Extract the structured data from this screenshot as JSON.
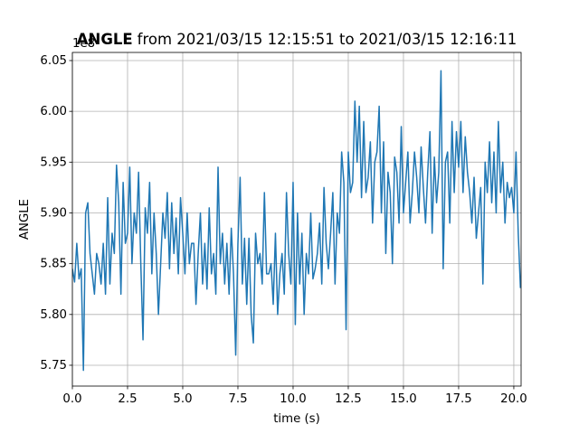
{
  "chart_data": {
    "type": "line",
    "title_bold": "ANGLE",
    "title_rest": "from 2021/03/15 12:15:51 to 2021/03/15 12:16:11",
    "y_offset_label": "1e8",
    "xlabel": "time (s)",
    "ylabel": "ANGLE",
    "color": "#1f77b4",
    "grid": true,
    "xlim": [
      0,
      20.33
    ],
    "ylim": [
      5.7295,
      6.058
    ],
    "xticks": [
      {
        "value": 0,
        "label": "0.0"
      },
      2.5,
      {
        "value": 5,
        "label": "5.0"
      },
      7.5,
      {
        "value": 10,
        "label": "10.0"
      },
      12.5,
      {
        "value": 15,
        "label": "15.0"
      },
      17.5,
      {
        "value": 20,
        "label": "20.0"
      }
    ],
    "yticks": [
      5.75,
      {
        "value": 5.8,
        "label": "5.80"
      },
      5.85,
      {
        "value": 5.9,
        "label": "5.90"
      },
      5.95,
      {
        "value": 6,
        "label": "6.00"
      },
      6.05
    ],
    "x": [
      0,
      0.1,
      0.2,
      0.3,
      0.4,
      0.5,
      0.6,
      0.7,
      0.8,
      0.9,
      1,
      1.1,
      1.2,
      1.3,
      1.4,
      1.5,
      1.6,
      1.7,
      1.8,
      1.9,
      2,
      2.1,
      2.2,
      2.3,
      2.4,
      2.5,
      2.6,
      2.7,
      2.8,
      2.9,
      3,
      3.1,
      3.2,
      3.3,
      3.4,
      3.5,
      3.6,
      3.7,
      3.8,
      3.9,
      4,
      4.1,
      4.2,
      4.3,
      4.4,
      4.5,
      4.6,
      4.7,
      4.8,
      4.9,
      5,
      5.1,
      5.2,
      5.3,
      5.4,
      5.5,
      5.6,
      5.7,
      5.8,
      5.9,
      6,
      6.1,
      6.2,
      6.3,
      6.4,
      6.5,
      6.6,
      6.7,
      6.8,
      6.9,
      7,
      7.1,
      7.2,
      7.3,
      7.4,
      7.5,
      7.6,
      7.7,
      7.8,
      7.9,
      8,
      8.1,
      8.2,
      8.3,
      8.4,
      8.5,
      8.6,
      8.7,
      8.8,
      8.9,
      9,
      9.1,
      9.2,
      9.3,
      9.4,
      9.5,
      9.6,
      9.7,
      9.8,
      9.9,
      10,
      10.1,
      10.2,
      10.3,
      10.4,
      10.5,
      10.6,
      10.7,
      10.8,
      10.9,
      11,
      11.1,
      11.2,
      11.3,
      11.4,
      11.5,
      11.6,
      11.7,
      11.8,
      11.9,
      12,
      12.1,
      12.2,
      12.3,
      12.4,
      12.5,
      12.6,
      12.7,
      12.8,
      12.9,
      13,
      13.1,
      13.2,
      13.3,
      13.4,
      13.5,
      13.6,
      13.7,
      13.8,
      13.9,
      14,
      14.1,
      14.2,
      14.3,
      14.4,
      14.5,
      14.6,
      14.7,
      14.8,
      14.9,
      15,
      15.1,
      15.2,
      15.3,
      15.4,
      15.5,
      15.6,
      15.7,
      15.8,
      15.9,
      16,
      16.1,
      16.2,
      16.3,
      16.4,
      16.5,
      16.6,
      16.7,
      16.8,
      16.9,
      17,
      17.1,
      17.2,
      17.3,
      17.4,
      17.5,
      17.6,
      17.7,
      17.8,
      17.9,
      18,
      18.1,
      18.2,
      18.3,
      18.4,
      18.5,
      18.6,
      18.7,
      18.8,
      18.9,
      19,
      19.1,
      19.2,
      19.3,
      19.4,
      19.5,
      19.6,
      19.7,
      19.8,
      19.9,
      20,
      20.1,
      20.2,
      20.3
    ],
    "values": [
      5.845,
      5.832,
      5.87,
      5.835,
      5.845,
      5.745,
      5.9,
      5.91,
      5.86,
      5.84,
      5.82,
      5.86,
      5.85,
      5.83,
      5.87,
      5.82,
      5.915,
      5.83,
      5.88,
      5.86,
      5.947,
      5.91,
      5.82,
      5.93,
      5.87,
      5.88,
      5.945,
      5.85,
      5.9,
      5.88,
      5.94,
      5.85,
      5.775,
      5.905,
      5.88,
      5.93,
      5.84,
      5.9,
      5.86,
      5.8,
      5.85,
      5.9,
      5.875,
      5.92,
      5.845,
      5.91,
      5.86,
      5.895,
      5.84,
      5.915,
      5.88,
      5.84,
      5.9,
      5.85,
      5.87,
      5.87,
      5.81,
      5.86,
      5.9,
      5.83,
      5.87,
      5.825,
      5.905,
      5.84,
      5.86,
      5.82,
      5.945,
      5.85,
      5.88,
      5.83,
      5.87,
      5.82,
      5.885,
      5.84,
      5.76,
      5.87,
      5.935,
      5.83,
      5.875,
      5.81,
      5.875,
      5.8,
      5.772,
      5.88,
      5.85,
      5.86,
      5.83,
      5.92,
      5.84,
      5.84,
      5.85,
      5.81,
      5.88,
      5.8,
      5.84,
      5.86,
      5.82,
      5.92,
      5.86,
      5.83,
      5.93,
      5.79,
      5.9,
      5.83,
      5.88,
      5.8,
      5.86,
      5.84,
      5.9,
      5.835,
      5.845,
      5.86,
      5.89,
      5.83,
      5.925,
      5.87,
      5.845,
      5.88,
      5.92,
      5.83,
      5.9,
      5.88,
      5.96,
      5.93,
      5.785,
      5.96,
      5.92,
      5.93,
      6.01,
      5.95,
      6.005,
      5.915,
      5.99,
      5.92,
      5.935,
      5.97,
      5.89,
      5.95,
      5.96,
      6.005,
      5.9,
      5.97,
      5.86,
      5.94,
      5.92,
      5.85,
      5.955,
      5.94,
      5.89,
      5.985,
      5.9,
      5.93,
      5.96,
      5.89,
      5.92,
      5.96,
      5.935,
      5.9,
      5.965,
      5.925,
      5.89,
      5.94,
      5.98,
      5.88,
      5.955,
      5.91,
      5.94,
      6.04,
      5.845,
      5.95,
      5.96,
      5.89,
      5.99,
      5.92,
      5.98,
      5.945,
      5.99,
      5.92,
      5.975,
      5.94,
      5.92,
      5.89,
      5.935,
      5.875,
      5.9,
      5.925,
      5.83,
      5.95,
      5.92,
      5.97,
      5.91,
      5.96,
      5.9,
      5.99,
      5.92,
      5.95,
      5.89,
      5.93,
      5.915,
      5.925,
      5.9,
      5.96,
      5.88,
      5.826
    ]
  }
}
